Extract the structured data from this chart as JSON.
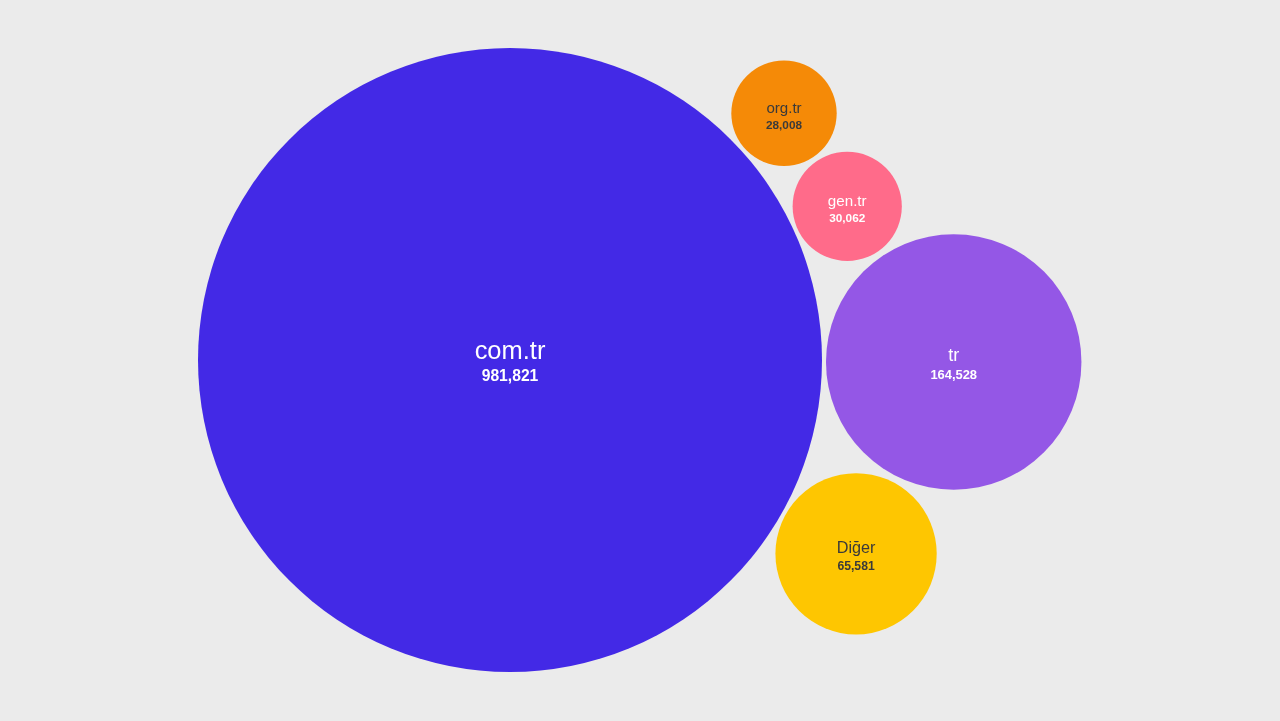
{
  "chart_data": {
    "type": "other",
    "categories": [
      "com.tr",
      "org.tr",
      "gen.tr",
      "tr",
      "Diğer"
    ],
    "values": [
      981821,
      28008,
      30062,
      164528,
      65581
    ],
    "colors": [
      "#4329e6",
      "#f58a07",
      "#ff6b8a",
      "#9457e6",
      "#fec601"
    ],
    "value_labels": [
      "981,821",
      "28,008",
      "30,062",
      "164,528",
      "65,581"
    ]
  }
}
